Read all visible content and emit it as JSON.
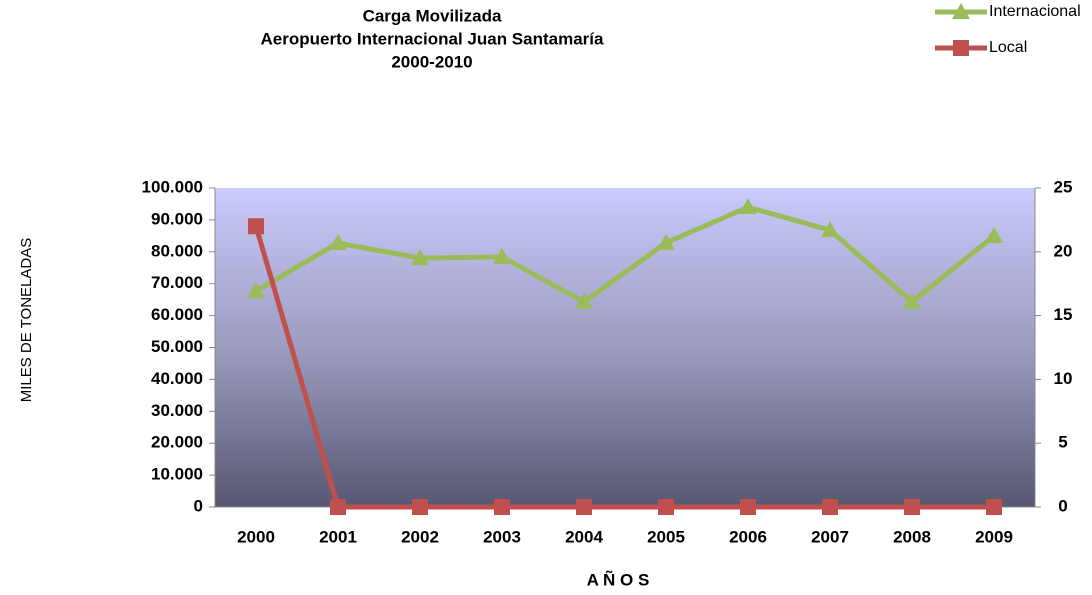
{
  "chart_data": {
    "type": "line",
    "title": [
      "Carga Movilizada",
      "Aeropuerto Internacional Juan Santamaría",
      "2000-2010"
    ],
    "ylabel": "MILES DE TONELADAS",
    "xlabel": "A Ñ O S",
    "categories": [
      "2000",
      "2001",
      "2002",
      "2003",
      "2004",
      "2005",
      "2006",
      "2007",
      "2008",
      "2009"
    ],
    "series": [
      {
        "name": "Internacional",
        "color": "#9bbb59",
        "marker": "triangle",
        "axis": "y",
        "values": [
          67700,
          82750,
          78000,
          78400,
          64300,
          82800,
          94000,
          86800,
          64300,
          85000
        ]
      },
      {
        "name": "Local",
        "color": "#c0504d",
        "marker": "square",
        "axis": "y2",
        "values": [
          22,
          0,
          0,
          0,
          0,
          0,
          0,
          0,
          0,
          0
        ]
      }
    ],
    "ylim": [
      0,
      100000
    ],
    "yticks": [
      {
        "value": 0,
        "label": "0"
      },
      {
        "value": 10000,
        "label": "10.000"
      },
      {
        "value": 20000,
        "label": "20.000"
      },
      {
        "value": 30000,
        "label": "30.000"
      },
      {
        "value": 40000,
        "label": "40.000"
      },
      {
        "value": 50000,
        "label": "50.000"
      },
      {
        "value": 60000,
        "label": "60.000"
      },
      {
        "value": 70000,
        "label": "70.000"
      },
      {
        "value": 80000,
        "label": "80.000"
      },
      {
        "value": 90000,
        "label": "90.000"
      },
      {
        "value": 100000,
        "label": "100.000"
      }
    ],
    "y2lim": [
      0,
      25
    ],
    "y2ticks": [
      0,
      5,
      10,
      15,
      20,
      25
    ],
    "legend": "top-right"
  }
}
